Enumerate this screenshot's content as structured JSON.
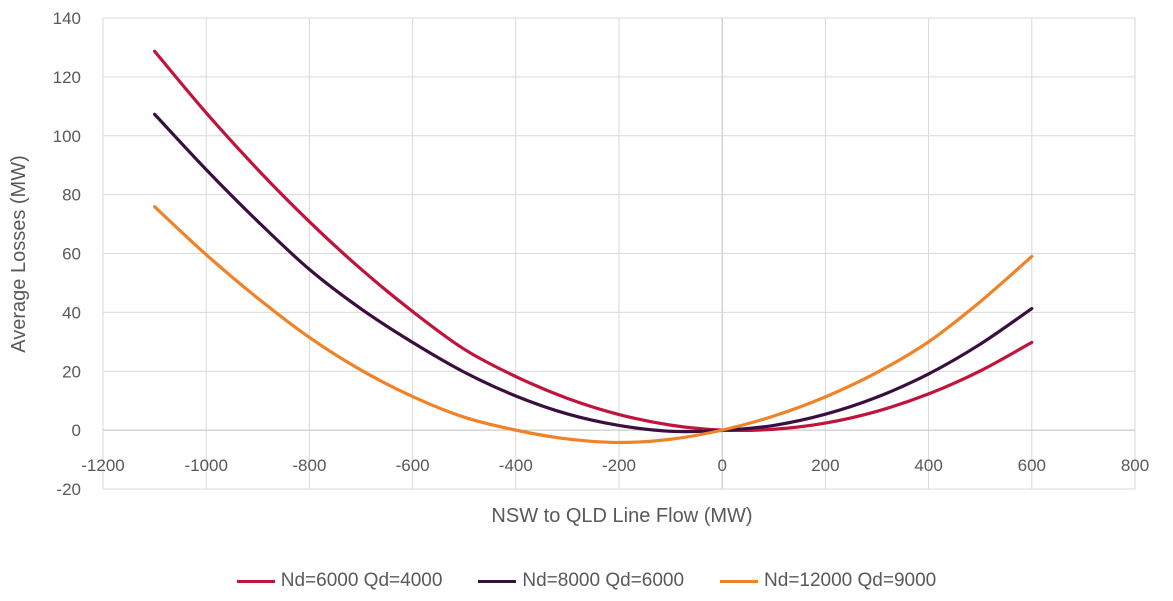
{
  "chart_data": {
    "type": "line",
    "xlabel": "NSW to QLD Line Flow (MW)",
    "ylabel": "Average Losses (MW)",
    "xlim": [
      -1200,
      800
    ],
    "ylim": [
      -20,
      140
    ],
    "xticks": [
      -1200,
      -1000,
      -800,
      -600,
      -400,
      -200,
      0,
      200,
      400,
      600,
      800
    ],
    "yticks": [
      -20,
      0,
      20,
      40,
      60,
      80,
      100,
      120,
      140
    ],
    "grid": true,
    "legend_position": "bottom",
    "series": [
      {
        "name": "Nd=6000 Qd=4000",
        "color": "#C0143C",
        "x": [
          -1100,
          -1000,
          -900,
          -800,
          -700,
          -600,
          -500,
          -400,
          -300,
          -200,
          -100,
          0,
          100,
          200,
          300,
          400,
          500,
          600
        ],
        "y": [
          128.7,
          107.8,
          88.5,
          70.8,
          54.7,
          40.3,
          27.5,
          18.2,
          10.8,
          5.3,
          1.7,
          0,
          0.3,
          2.4,
          6.4,
          12.3,
          20.1,
          29.8
        ]
      },
      {
        "name": "Nd=8000 Qd=6000",
        "color": "#3A0F3F",
        "x": [
          -1100,
          -1000,
          -900,
          -800,
          -700,
          -600,
          -500,
          -400,
          -300,
          -200,
          -100,
          0,
          100,
          200,
          300,
          400,
          500,
          600
        ],
        "y": [
          107.3,
          88.5,
          70.9,
          54.6,
          41.2,
          29.8,
          19.7,
          11.6,
          5.5,
          1.6,
          -0.4,
          -0.1,
          1.6,
          5.4,
          11.2,
          19.1,
          29.2,
          41.3
        ]
      },
      {
        "name": "Nd=12000 Qd=9000",
        "color": "#F08228",
        "x": [
          -1100,
          -1000,
          -900,
          -800,
          -700,
          -600,
          -500,
          -400,
          -300,
          -200,
          -100,
          0,
          100,
          200,
          300,
          400,
          500,
          600
        ],
        "y": [
          75.9,
          59.6,
          44.8,
          31.5,
          20.4,
          11.4,
          4.4,
          0,
          -3.0,
          -4.2,
          -3.1,
          0,
          4.8,
          11.3,
          19.6,
          30.0,
          43.6,
          59.0
        ]
      }
    ]
  }
}
